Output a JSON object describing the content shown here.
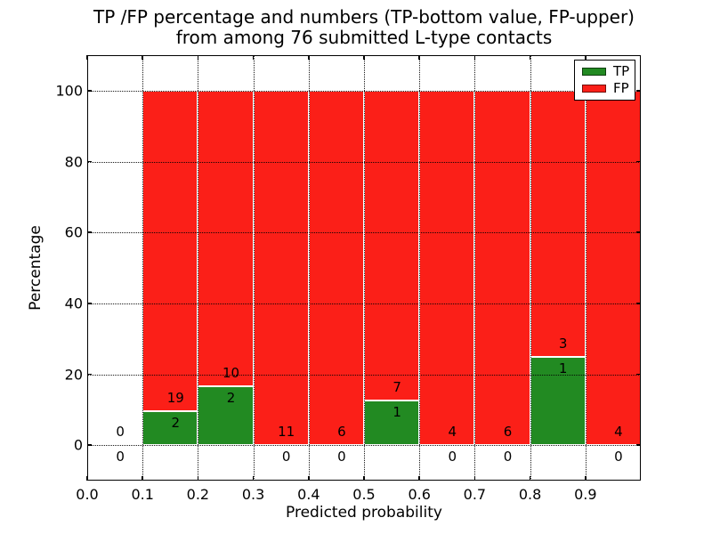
{
  "title": {
    "line1": "TP /FP percentage and numbers (TP-bottom value, FP-upper)",
    "line2": "from among 76 submitted L-type contacts"
  },
  "axes": {
    "xlabel": "Predicted probability",
    "ylabel": "Percentage",
    "x_tick_labels": [
      "0.0",
      "0.1",
      "0.2",
      "0.3",
      "0.4",
      "0.5",
      "0.6",
      "0.7",
      "0.8",
      "0.9"
    ],
    "y_tick_labels": [
      "0",
      "20",
      "40",
      "60",
      "80",
      "100"
    ]
  },
  "legend": {
    "items": [
      {
        "label": "TP",
        "color": "#228a22"
      },
      {
        "label": "FP",
        "color": "#fb1f18"
      }
    ]
  },
  "colors": {
    "tp_green": "#228a22",
    "fp_red": "#fb1f18",
    "bar_edge": "#ffffff",
    "grid": "#000000"
  },
  "chart_data": {
    "type": "bar",
    "stacked": true,
    "title": "TP /FP percentage and numbers (TP-bottom value, FP-upper) from among 76 submitted L-type contacts",
    "xlabel": "Predicted probability",
    "ylabel": "Percentage",
    "xlim": [
      0.0,
      1.0
    ],
    "ylim": [
      -10,
      110
    ],
    "grid": "dotted black, both axes, drawn above bars",
    "legend_position": "upper right",
    "total_contacts": 76,
    "series": [
      {
        "name": "TP",
        "color": "#228a22",
        "role": "bottom segment, percentage = TP/(TP+FP)*100"
      },
      {
        "name": "FP",
        "color": "#fb1f18",
        "role": "upper segment filling to 100%"
      }
    ],
    "bins": [
      {
        "range": [
          0.0,
          0.1
        ],
        "tp": 0,
        "fp": 0
      },
      {
        "range": [
          0.1,
          0.2
        ],
        "tp": 2,
        "fp": 19
      },
      {
        "range": [
          0.2,
          0.3
        ],
        "tp": 2,
        "fp": 10
      },
      {
        "range": [
          0.3,
          0.4
        ],
        "tp": 0,
        "fp": 11
      },
      {
        "range": [
          0.4,
          0.5
        ],
        "tp": 0,
        "fp": 6
      },
      {
        "range": [
          0.5,
          0.6
        ],
        "tp": 1,
        "fp": 7
      },
      {
        "range": [
          0.6,
          0.7
        ],
        "tp": 0,
        "fp": 4
      },
      {
        "range": [
          0.7,
          0.8
        ],
        "tp": 0,
        "fp": 6
      },
      {
        "range": [
          0.8,
          0.9
        ],
        "tp": 1,
        "fp": 3
      },
      {
        "range": [
          0.9,
          1.0
        ],
        "tp": 0,
        "fp": 4
      }
    ],
    "tp_percentages": [
      0,
      9.52,
      16.67,
      0,
      0,
      12.5,
      0,
      0,
      25.0,
      0
    ]
  }
}
